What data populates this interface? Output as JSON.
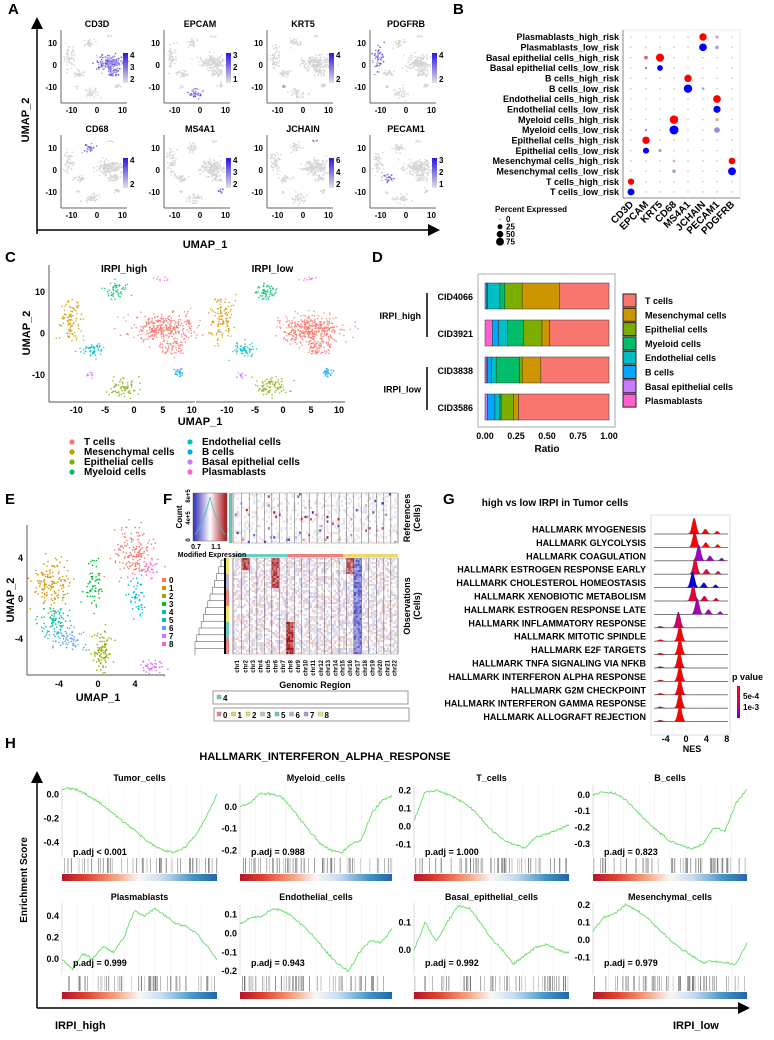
{
  "panel_labels": [
    "A",
    "B",
    "C",
    "D",
    "E",
    "F",
    "G",
    "H"
  ],
  "chart_data": [
    {
      "panel": "A",
      "type": "scatter",
      "xlabel": "UMAP_1",
      "ylabel": "UMAP_2",
      "xticks": [
        "-10",
        "0",
        "10"
      ],
      "yticks": [
        "10",
        "0",
        "-10"
      ],
      "low_color": "#D9D9D9",
      "high_color": "#3A1EE6",
      "features": [
        {
          "gene": "CD3D",
          "scale_ticks": [
            "4",
            "3",
            "2"
          ],
          "expressed_in": "T cells"
        },
        {
          "gene": "EPCAM",
          "scale_ticks": [
            "3",
            "2",
            "1"
          ],
          "expressed_in": "Epithelial cells"
        },
        {
          "gene": "KRT5",
          "scale_ticks": [
            "4",
            "2"
          ],
          "expressed_in": "Basal epithelial cells"
        },
        {
          "gene": "PDGFRB",
          "scale_ticks": [
            "4",
            "2"
          ],
          "expressed_in": "Mesenchymal cells"
        },
        {
          "gene": "CD68",
          "scale_ticks": [
            "4",
            "2"
          ],
          "expressed_in": "Myeloid cells"
        },
        {
          "gene": "MS4A1",
          "scale_ticks": [
            "4",
            "3",
            "2"
          ],
          "expressed_in": "B cells"
        },
        {
          "gene": "JCHAIN",
          "scale_ticks": [
            "6",
            "4",
            "2"
          ],
          "expressed_in": "Plasmablasts"
        },
        {
          "gene": "PECAM1",
          "scale_ticks": [
            "3",
            "2",
            "1"
          ],
          "expressed_in": "Endothelial cells"
        }
      ]
    },
    {
      "panel": "B",
      "type": "dotplot",
      "genes": [
        "CD3D",
        "EPCAM",
        "KRT5",
        "CD68",
        "MS4A1",
        "JCHAIN",
        "PECAM1",
        "PDGFRB"
      ],
      "high_color": "#FF0000",
      "low_color": "#0000FF",
      "rows": [
        {
          "label": "Plasmablasts_high_risk",
          "group": "high",
          "dots": {
            "JCHAIN": [
              65,
              1
            ],
            "PECAM1": [
              8,
              0.2
            ]
          }
        },
        {
          "label": "Plasmablasts_low_risk",
          "group": "low",
          "dots": {
            "JCHAIN": [
              70,
              1
            ],
            "PECAM1": [
              12,
              0.2
            ]
          }
        },
        {
          "label": "Basal epithelial cells_high_risk",
          "group": "high",
          "dots": {
            "EPCAM": [
              12,
              0.5
            ],
            "KRT5": [
              80,
              1
            ]
          }
        },
        {
          "label": "Basal epithelial cells_low_risk",
          "group": "low",
          "dots": {
            "EPCAM": [
              4,
              0.3
            ],
            "KRT5": [
              35,
              1
            ]
          }
        },
        {
          "label": "B cells_high_risk",
          "group": "high",
          "dots": {
            "MS4A1": [
              65,
              1
            ]
          }
        },
        {
          "label": "B cells_low_risk",
          "group": "low",
          "dots": {
            "MS4A1": [
              85,
              1
            ],
            "JCHAIN": [
              5,
              0.2
            ]
          }
        },
        {
          "label": "Endothelial cells_high_risk",
          "group": "high",
          "dots": {
            "PECAM1": [
              70,
              1
            ]
          }
        },
        {
          "label": "Endothelial cells_low_risk",
          "group": "low",
          "dots": {
            "PECAM1": [
              60,
              1
            ]
          }
        },
        {
          "label": "Myeloid cells_high_risk",
          "group": "high",
          "dots": {
            "CD68": [
              90,
              1
            ],
            "PECAM1": [
              8,
              0.2
            ]
          }
        },
        {
          "label": "Myeloid cells_low_risk",
          "group": "low",
          "dots": {
            "CD68": [
              100,
              1
            ],
            "PECAM1": [
              35,
              0.3
            ],
            "EPCAM": [
              3,
              0.3
            ]
          }
        },
        {
          "label": "Epithelial cells_high_risk",
          "group": "high",
          "dots": {
            "EPCAM": [
              65,
              1
            ]
          }
        },
        {
          "label": "Epithelial cells_low_risk",
          "group": "low",
          "dots": {
            "EPCAM": [
              40,
              1
            ],
            "KRT5": [
              8,
              0.2
            ]
          }
        },
        {
          "label": "Mesenchymal cells_high_risk",
          "group": "high",
          "dots": {
            "PDGFRB": [
              50,
              1
            ],
            "CD68": [
              4,
              0.2
            ]
          }
        },
        {
          "label": "Mesenchymal cells_low_risk",
          "group": "low",
          "dots": {
            "PDGFRB": [
              75,
              1
            ],
            "CD68": [
              12,
              0.2
            ]
          }
        },
        {
          "label": "T cells_high_risk",
          "group": "high",
          "dots": {
            "CD3D": [
              45,
              1
            ]
          }
        },
        {
          "label": "T cells_low_risk",
          "group": "low",
          "dots": {
            "CD3D": [
              55,
              1
            ]
          }
        }
      ],
      "size_legend": {
        "title": "Percent Expressed",
        "values": [
          "0",
          "25",
          "50",
          "75"
        ]
      }
    },
    {
      "panel": "C",
      "type": "scatter",
      "facets": [
        "IRPI_high",
        "IRPI_low"
      ],
      "xlabel": "UMAP_1",
      "ylabel": "UMAP_2",
      "xticks": [
        "-10",
        "-5",
        "0",
        "5",
        "10"
      ],
      "yticks": [
        "10",
        "0",
        "-10"
      ],
      "clusters": [
        {
          "name": "T cells",
          "color": "#F8766D",
          "center": [
            5,
            1
          ]
        },
        {
          "name": "Mesenchymal cells",
          "color": "#CD9600",
          "center": [
            -11,
            3.5
          ]
        },
        {
          "name": "Epithelial cells",
          "color": "#7CAE00",
          "center": [
            -2,
            -13
          ]
        },
        {
          "name": "Myeloid cells",
          "color": "#00BE67",
          "center": [
            -3,
            10
          ]
        },
        {
          "name": "Endothelial cells",
          "color": "#00BFC4",
          "center": [
            -7,
            -4
          ]
        },
        {
          "name": "B cells",
          "color": "#00A9FF",
          "center": [
            8,
            -9.5
          ]
        },
        {
          "name": "Basal epithelial cells",
          "color": "#C77CFF",
          "center": [
            -7.5,
            -10
          ]
        },
        {
          "name": "Plasmablasts",
          "color": "#FF61CC",
          "center": [
            5,
            13
          ]
        }
      ]
    },
    {
      "panel": "D",
      "type": "bar",
      "orientation": "horizontal",
      "stacked": true,
      "categories": [
        "CID4066",
        "CID3921",
        "CID3838",
        "CID3586"
      ],
      "groups": [
        {
          "label": "IRPI_high",
          "samples": [
            "CID4066",
            "CID3921"
          ]
        },
        {
          "label": "IRPI_low",
          "samples": [
            "CID3838",
            "CID3586"
          ]
        }
      ],
      "xlabel": "Ratio",
      "xticks": [
        "0.00",
        "0.25",
        "0.50",
        "0.75",
        "1.00"
      ],
      "xlim": [
        0,
        1
      ],
      "legend": "right",
      "series": [
        {
          "name": "T cells",
          "color": "#F8766D",
          "values": [
            0.4,
            0.48,
            0.55,
            0.73
          ]
        },
        {
          "name": "Mesenchymal cells",
          "color": "#CD9600",
          "values": [
            0.3,
            0.06,
            0.15,
            0.04
          ]
        },
        {
          "name": "Epithelial cells",
          "color": "#7CAE00",
          "values": [
            0.14,
            0.15,
            0.02,
            0.1
          ]
        },
        {
          "name": "Myeloid cells",
          "color": "#00BE67",
          "values": [
            0.04,
            0.13,
            0.19,
            0.01
          ]
        },
        {
          "name": "Endothelial cells",
          "color": "#00BFC4",
          "values": [
            0.1,
            0.07,
            0.04,
            0.04
          ]
        },
        {
          "name": "B cells",
          "color": "#00A9FF",
          "values": [
            0.01,
            0.05,
            0.03,
            0.06
          ]
        },
        {
          "name": "Basal epithelial cells",
          "color": "#C77CFF",
          "values": [
            0.01,
            0.0,
            0.01,
            0.02
          ]
        },
        {
          "name": "Plasmablasts",
          "color": "#FF61CC",
          "values": [
            0.0,
            0.06,
            0.01,
            0.0
          ]
        }
      ]
    },
    {
      "panel": "E",
      "type": "scatter",
      "xlabel": "UMAP_1",
      "ylabel": "UMAP_2",
      "xticks": [
        "-4",
        "0",
        "4"
      ],
      "yticks": [
        "4",
        "0",
        "-4"
      ],
      "clusters": [
        {
          "name": "0",
          "color": "#F8766D",
          "center": [
            3.8,
            4.5
          ]
        },
        {
          "name": "1",
          "color": "#D39200",
          "center": [
            -5,
            1.6
          ]
        },
        {
          "name": "2",
          "color": "#93AA00",
          "center": [
            0.5,
            -5.3
          ]
        },
        {
          "name": "3",
          "color": "#00BA38",
          "center": [
            -0.4,
            1.3
          ]
        },
        {
          "name": "4",
          "color": "#00C19F",
          "center": [
            -4.6,
            -2.4
          ]
        },
        {
          "name": "5",
          "color": "#00B9E3",
          "center": [
            4.2,
            0.3
          ]
        },
        {
          "name": "6",
          "color": "#619CFF",
          "center": [
            -3,
            -4
          ]
        },
        {
          "name": "7",
          "color": "#DB72FB",
          "center": [
            5.9,
            -6.6
          ]
        },
        {
          "name": "8",
          "color": "#FF61C3",
          "center": [
            5.5,
            3.2
          ]
        }
      ]
    },
    {
      "panel": "F",
      "type": "heatmap",
      "xlabel": "Genomic Region",
      "chromosomes": [
        "chr1",
        "chr2",
        "chr3",
        "chr4",
        "chr5",
        "chr6",
        "chr7",
        "chr8",
        "chr9",
        "chr10",
        "chr11",
        "chr12",
        "chr13",
        "chr14",
        "chr15",
        "chr16",
        "chr17",
        "chr18",
        "chr19",
        "chr20",
        "chr21",
        "chr22"
      ],
      "references_label": [
        "References",
        "(Cells)"
      ],
      "observations_label": [
        "Observations",
        "(Cells)"
      ],
      "color_key": {
        "title": "Count",
        "count_ticks": [
          "0",
          "4e+5",
          "8e+5"
        ],
        "value_ticks": [
          "0.7",
          "1.1"
        ],
        "xlabel": "Modified Expression",
        "low_color": "#2A2AB4",
        "mid_color": "#FFFFFF",
        "high_color": "#A50F15"
      },
      "reference_groups": [
        "4"
      ],
      "observation_groups": [
        "0",
        "1",
        "2",
        "3",
        "5",
        "6",
        "7",
        "8"
      ]
    },
    {
      "panel": "G",
      "type": "ridgeline",
      "title": "high vs low IRPI in Tumor cells",
      "xlabel": "NES",
      "xticks": [
        "-4",
        "0",
        "4",
        "8"
      ],
      "legend": {
        "title": "p value",
        "ticks": [
          "5e-4",
          "1e-3"
        ],
        "colors": [
          "#FF0000",
          "#7B00D4"
        ]
      },
      "pathways": [
        {
          "name": "HALLMARK MYOGENESIS",
          "peak_nes": 1.6,
          "color": "#FF0000"
        },
        {
          "name": "HALLMARK GLYCOLYSIS",
          "peak_nes": 1.7,
          "color": "#FF0000"
        },
        {
          "name": "HALLMARK COAGULATION",
          "peak_nes": 2.5,
          "color": "#A000C8"
        },
        {
          "name": "HALLMARK ESTROGEN RESPONSE EARLY",
          "peak_nes": 1.8,
          "color": "#F0003A"
        },
        {
          "name": "HALLMARK CHOLESTEROL HOMEOSTASIS",
          "peak_nes": 1.3,
          "color": "#0000E0"
        },
        {
          "name": "HALLMARK XENOBIOTIC METABOLISM",
          "peak_nes": 1.4,
          "color": "#E8003C"
        },
        {
          "name": "HALLMARK ESTROGEN RESPONSE LATE",
          "peak_nes": 2.2,
          "color": "#A800B8"
        },
        {
          "name": "HALLMARK INFLAMMATORY RESPONSE",
          "peak_nes": -1.5,
          "color": "#D0006A"
        },
        {
          "name": "HALLMARK MITOTIC SPINDLE",
          "peak_nes": -1.2,
          "color": "#FF0000"
        },
        {
          "name": "HALLMARK E2F TARGETS",
          "peak_nes": -1.2,
          "color": "#FF0000"
        },
        {
          "name": "HALLMARK TNFA SIGNALING VIA NFKB",
          "peak_nes": -1.3,
          "color": "#FF0000"
        },
        {
          "name": "HALLMARK INTERFERON ALPHA RESPONSE",
          "peak_nes": -1.2,
          "color": "#FF0000"
        },
        {
          "name": "HALLMARK G2M CHECKPOINT",
          "peak_nes": -1.2,
          "color": "#FF0000"
        },
        {
          "name": "HALLMARK INTERFERON GAMMA RESPONSE",
          "peak_nes": -1.2,
          "color": "#FF0000"
        },
        {
          "name": "HALLMARK ALLOGRAFT REJECTION",
          "peak_nes": -1.2,
          "color": "#FF0000"
        }
      ]
    },
    {
      "panel": "H",
      "type": "line",
      "title": "HALLMARK_INTERFERON_ALPHA_RESPONSE",
      "ylabel": "Enrichment Score",
      "left_label": "IRPI_high",
      "right_label": "IRPI_low",
      "curve_color": "#66DD66",
      "panels": [
        {
          "name": "Tumor_cells",
          "padj": "p.adj < 0.001",
          "ylim": [
            -0.52,
            0.08
          ],
          "yticks": [
            "0.0",
            "-0.2",
            "-0.4"
          ],
          "es": [
            0.05,
            0.05,
            0.02,
            -0.03,
            -0.09,
            -0.16,
            -0.23,
            -0.3,
            -0.37,
            -0.43,
            -0.47,
            -0.48,
            -0.43,
            -0.33,
            -0.18,
            0.0
          ]
        },
        {
          "name": "Myeloid_cells",
          "padj": "p.adj = 0.988",
          "ylim": [
            -0.23,
            0.1
          ],
          "yticks": [
            "0.0",
            "-0.1",
            "-0.2"
          ],
          "es": [
            0.0,
            0.02,
            0.06,
            0.06,
            0.05,
            0.0,
            -0.06,
            -0.12,
            -0.17,
            -0.2,
            -0.21,
            -0.17,
            -0.15,
            -0.03,
            0.03,
            0.05
          ]
        },
        {
          "name": "T_cells",
          "padj": "p.adj = 1.000",
          "ylim": [
            -0.17,
            0.23
          ],
          "yticks": [
            "0.2",
            "0.1",
            "0.0",
            "-0.1"
          ],
          "es": [
            0.03,
            0.19,
            0.2,
            0.18,
            0.15,
            0.11,
            0.05,
            -0.02,
            -0.07,
            -0.1,
            -0.12,
            -0.06,
            -0.04,
            -0.02,
            0.01
          ]
        },
        {
          "name": "B_cells",
          "padj": "p.adj = 0.823",
          "ylim": [
            -0.38,
            0.06
          ],
          "yticks": [
            "0.0",
            "-0.1",
            "-0.2",
            "-0.3"
          ],
          "es": [
            0.0,
            0.02,
            0.01,
            -0.03,
            -0.1,
            -0.17,
            -0.23,
            -0.28,
            -0.31,
            -0.33,
            -0.3,
            -0.2,
            -0.22,
            -0.05,
            0.03
          ]
        },
        {
          "name": "Plasmablasts",
          "padj": "p.adj = 0.999",
          "ylim": [
            -0.15,
            0.52
          ],
          "yticks": [
            "0.4",
            "0.2",
            "0.0"
          ],
          "es": [
            0.0,
            -0.1,
            0.05,
            0.0,
            0.12,
            0.06,
            0.2,
            0.45,
            0.4,
            0.47,
            0.4,
            0.33,
            0.3,
            0.24,
            0.12,
            0.0
          ]
        },
        {
          "name": "Endothelial_cells",
          "padj": "p.adj = 0.943",
          "ylim": [
            -0.22,
            0.16
          ],
          "yticks": [
            "0.1",
            "0.0",
            "-0.1",
            "-0.2"
          ],
          "es": [
            0.05,
            0.08,
            0.09,
            0.13,
            0.12,
            0.08,
            0.03,
            -0.03,
            -0.1,
            -0.16,
            -0.2,
            -0.1,
            -0.04,
            -0.05,
            0.02
          ]
        },
        {
          "name": "Basal_epithelial_cells",
          "padj": "p.adj = 0.992",
          "ylim": [
            -0.09,
            0.17
          ],
          "yticks": [
            "0.1",
            "0.0"
          ],
          "es": [
            0.0,
            0.1,
            0.03,
            0.1,
            0.16,
            0.15,
            0.1,
            0.04,
            0.0,
            -0.05,
            -0.02,
            0.01,
            0.02,
            0.0,
            -0.01
          ]
        },
        {
          "name": "Mesenchymal_cells",
          "padj": "p.adj = 0.979",
          "ylim": [
            -0.2,
            0.21
          ],
          "yticks": [
            "0.2",
            "0.1",
            "0.0",
            "-0.1"
          ],
          "es": [
            0.05,
            0.13,
            0.15,
            0.2,
            0.17,
            0.12,
            0.06,
            0.0,
            -0.05,
            -0.09,
            -0.13,
            -0.12,
            -0.13,
            -0.14,
            -0.02
          ]
        }
      ]
    }
  ]
}
